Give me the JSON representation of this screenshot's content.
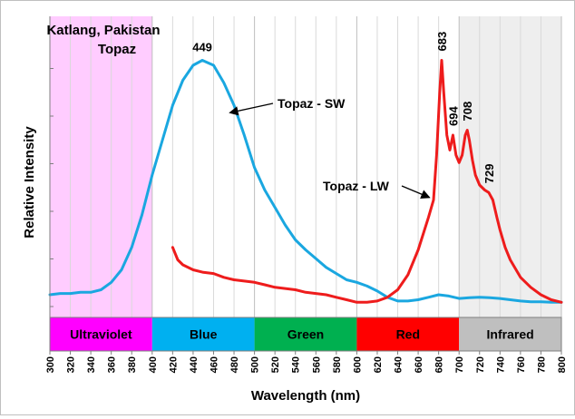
{
  "chart_data": {
    "type": "line",
    "title_lines": [
      "Katlang, Pakistan",
      "Topaz"
    ],
    "xlabel": "Wavelength (nm)",
    "ylabel": "Relative Intensity",
    "xlim": [
      300,
      800
    ],
    "ylim": [
      0,
      100
    ],
    "grid": {
      "vertical": true,
      "horizontal": false
    },
    "x_ticks": [
      300,
      320,
      340,
      360,
      380,
      400,
      420,
      440,
      460,
      480,
      500,
      520,
      540,
      560,
      580,
      600,
      620,
      640,
      660,
      680,
      700,
      720,
      740,
      760,
      780,
      800
    ],
    "regions": [
      {
        "label": "Ultraviolet",
        "from": 300,
        "to": 400,
        "band_color": "#ff00ff",
        "shade_color": "#ffccff"
      },
      {
        "label": "Blue",
        "from": 400,
        "to": 500,
        "band_color": "#00b0f0",
        "shade_color": null
      },
      {
        "label": "Green",
        "from": 500,
        "to": 600,
        "band_color": "#00b050",
        "shade_color": null
      },
      {
        "label": "Red",
        "from": 600,
        "to": 700,
        "band_color": "#ff0000",
        "shade_color": null
      },
      {
        "label": "Infrared",
        "from": 700,
        "to": 800,
        "band_color": "#bfbfbf",
        "shade_color": "#eeeeee"
      }
    ],
    "series": [
      {
        "name": "Topaz - SW",
        "color": "#1aa7e0",
        "x": [
          300,
          310,
          320,
          330,
          340,
          350,
          360,
          370,
          380,
          390,
          400,
          410,
          420,
          430,
          440,
          449,
          460,
          470,
          480,
          490,
          500,
          510,
          520,
          530,
          540,
          550,
          560,
          570,
          580,
          590,
          600,
          610,
          620,
          630,
          640,
          650,
          660,
          670,
          680,
          690,
          700,
          710,
          720,
          730,
          740,
          750,
          760,
          770,
          780,
          790,
          800
        ],
        "y": [
          4,
          4.5,
          4.5,
          5,
          5,
          6,
          9,
          14,
          23,
          36,
          52,
          66,
          80,
          90,
          96,
          98,
          96,
          89,
          80,
          68,
          55,
          46,
          39,
          32,
          26,
          22,
          18.5,
          15,
          12.5,
          10,
          9,
          7.5,
          5.5,
          3,
          1.5,
          1.5,
          2,
          3,
          4,
          3.5,
          2.5,
          2.8,
          3,
          2.8,
          2.5,
          2,
          1.5,
          1.2,
          1.2,
          1,
          1
        ]
      },
      {
        "name": "Topaz - LW",
        "color": "#ee1c1c",
        "x": [
          420,
          425,
          430,
          440,
          450,
          460,
          470,
          480,
          490,
          500,
          510,
          520,
          530,
          540,
          550,
          560,
          570,
          580,
          590,
          600,
          610,
          620,
          630,
          640,
          650,
          660,
          670,
          675,
          678,
          681,
          683,
          685,
          688,
          691,
          694,
          697,
          700,
          703,
          706,
          708,
          710,
          713,
          716,
          720,
          725,
          729,
          733,
          737,
          740,
          745,
          750,
          760,
          770,
          780,
          790,
          800
        ],
        "y": [
          23,
          18,
          16,
          14,
          13,
          12.5,
          11,
          10,
          9.5,
          9,
          8,
          7,
          6.5,
          6,
          5,
          4.5,
          4,
          3,
          2,
          1,
          1,
          1.5,
          3,
          6,
          12,
          22,
          35,
          42,
          60,
          85,
          98,
          85,
          68,
          62,
          68,
          60,
          57,
          60,
          68,
          70,
          66,
          58,
          52,
          48,
          46,
          45,
          42,
          35,
          30,
          23,
          18,
          11,
          7,
          4,
          2,
          1
        ]
      }
    ],
    "peak_labels": [
      {
        "series": "Topaz - SW",
        "x": 449,
        "y": 98,
        "text": "449"
      },
      {
        "series": "Topaz - LW",
        "x": 683,
        "y": 98,
        "text": "683"
      },
      {
        "series": "Topaz - LW",
        "x": 694,
        "y": 68,
        "text": "694"
      },
      {
        "series": "Topaz - LW",
        "x": 708,
        "y": 70,
        "text": "708"
      },
      {
        "series": "Topaz - LW",
        "x": 729,
        "y": 45,
        "text": "729"
      }
    ],
    "annotations": [
      {
        "text": "Topaz - SW",
        "arrow_to_x": 476,
        "arrow_to_y": 77
      },
      {
        "text": "Topaz - LW",
        "arrow_to_x": 671,
        "arrow_to_y": 43
      }
    ]
  }
}
